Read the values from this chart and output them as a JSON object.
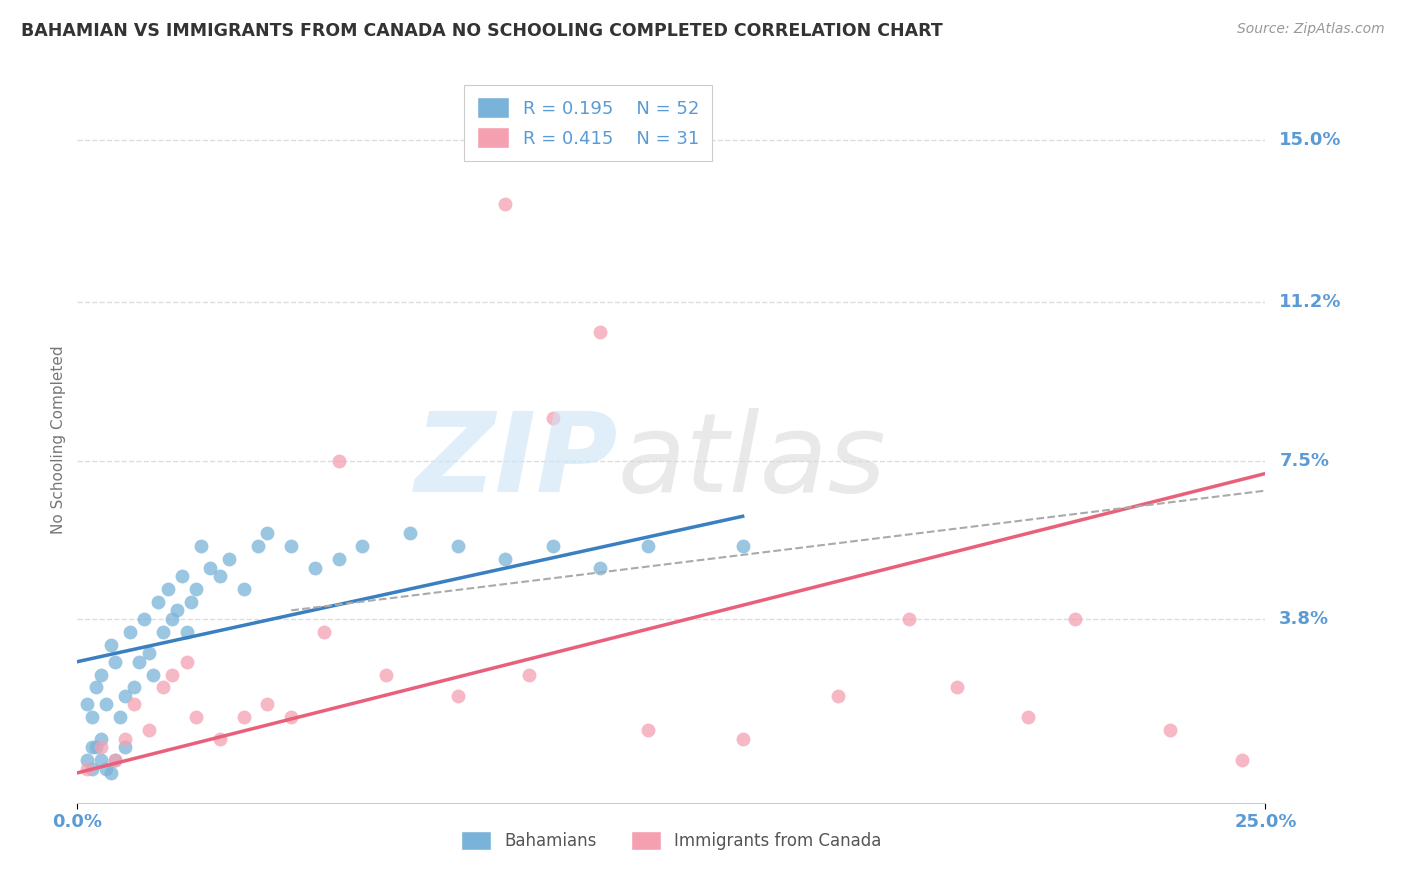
{
  "title": "BAHAMIAN VS IMMIGRANTS FROM CANADA NO SCHOOLING COMPLETED CORRELATION CHART",
  "source": "Source: ZipAtlas.com",
  "ylabel": "No Schooling Completed",
  "xlim": [
    0.0,
    25.0
  ],
  "ylim": [
    -0.5,
    16.5
  ],
  "y_ticks": [
    0.0,
    3.8,
    7.5,
    11.2,
    15.0
  ],
  "y_tick_labels": [
    "",
    "3.8%",
    "7.5%",
    "11.2%",
    "15.0%"
  ],
  "background_color": "#ffffff",
  "grid_color": "#dddddd",
  "blue_color": "#7ab3d9",
  "pink_color": "#f4a0b0",
  "blue_line_color": "#3a7fc1",
  "pink_line_color": "#e8607a",
  "dashed_line_color": "#aaaaaa",
  "title_color": "#333333",
  "source_color": "#999999",
  "axis_label_color": "#5b9bd5",
  "ylabel_color": "#777777",
  "blue_scatter_x": [
    0.2,
    0.3,
    0.3,
    0.4,
    0.5,
    0.5,
    0.6,
    0.7,
    0.8,
    0.9,
    1.0,
    1.1,
    1.2,
    1.3,
    1.4,
    1.5,
    1.6,
    1.7,
    1.8,
    1.9,
    2.0,
    2.1,
    2.2,
    2.3,
    2.4,
    2.5,
    2.6,
    2.8,
    3.0,
    3.2,
    3.5,
    3.8,
    4.0,
    4.5,
    5.0,
    5.5,
    6.0,
    7.0,
    8.0,
    9.0,
    10.0,
    11.0,
    12.0,
    14.0,
    0.2,
    0.3,
    0.4,
    0.5,
    0.6,
    0.7,
    0.8,
    1.0
  ],
  "blue_scatter_y": [
    1.8,
    1.5,
    0.8,
    2.2,
    1.0,
    2.5,
    1.8,
    3.2,
    2.8,
    1.5,
    2.0,
    3.5,
    2.2,
    2.8,
    3.8,
    3.0,
    2.5,
    4.2,
    3.5,
    4.5,
    3.8,
    4.0,
    4.8,
    3.5,
    4.2,
    4.5,
    5.5,
    5.0,
    4.8,
    5.2,
    4.5,
    5.5,
    5.8,
    5.5,
    5.0,
    5.2,
    5.5,
    5.8,
    5.5,
    5.2,
    5.5,
    5.0,
    5.5,
    5.5,
    0.5,
    0.3,
    0.8,
    0.5,
    0.3,
    0.2,
    0.5,
    0.8
  ],
  "pink_scatter_x": [
    0.2,
    0.5,
    0.8,
    1.0,
    1.2,
    1.5,
    1.8,
    2.0,
    2.3,
    2.5,
    3.0,
    3.5,
    4.0,
    4.5,
    5.2,
    5.5,
    6.5,
    8.0,
    9.0,
    10.0,
    11.0,
    12.0,
    14.0,
    16.0,
    17.5,
    18.5,
    20.0,
    21.0,
    23.0,
    24.5,
    9.5
  ],
  "pink_scatter_y": [
    0.3,
    0.8,
    0.5,
    1.0,
    1.8,
    1.2,
    2.2,
    2.5,
    2.8,
    1.5,
    1.0,
    1.5,
    1.8,
    1.5,
    3.5,
    7.5,
    2.5,
    2.0,
    13.5,
    8.5,
    10.5,
    1.2,
    1.0,
    2.0,
    3.8,
    2.2,
    1.5,
    3.8,
    1.2,
    0.5,
    2.5
  ],
  "blue_trendline_x": [
    0.0,
    14.0
  ],
  "blue_trendline_y": [
    2.8,
    6.2
  ],
  "pink_trendline_x": [
    0.0,
    25.0
  ],
  "pink_trendline_y": [
    0.2,
    7.2
  ],
  "dashed_trendline_x": [
    4.5,
    25.0
  ],
  "dashed_trendline_y": [
    4.0,
    6.8
  ],
  "legend_top_entries": [
    {
      "label": "R = 0.195    N = 52",
      "color": "#7ab3d9"
    },
    {
      "label": "R = 0.415    N = 31",
      "color": "#f4a0b0"
    }
  ],
  "legend_bottom_entries": [
    {
      "label": "Bahamians",
      "color": "#7ab3d9"
    },
    {
      "label": "Immigrants from Canada",
      "color": "#f4a0b0"
    }
  ]
}
